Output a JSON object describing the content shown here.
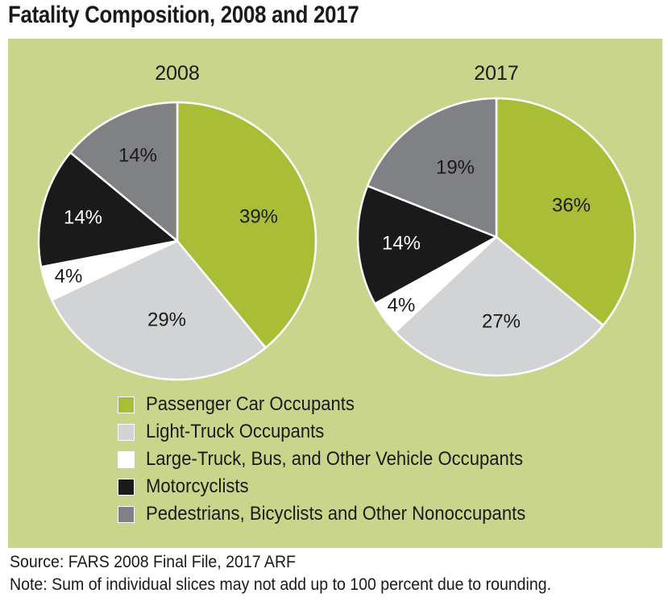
{
  "figure": {
    "title": "Fatality Composition, 2008 and 2017"
  },
  "colors": {
    "panel": "#c8d58b",
    "passenger_car": "#a9bd36",
    "light_truck": "#d1d3d4",
    "large_truck": "#ffffff",
    "motorcyclists": "#1b1a1b",
    "pedestrians": "#808184"
  },
  "legend": [
    {
      "label": "Passenger Car Occupants",
      "color": "#a9bd36"
    },
    {
      "label": "Light-Truck Occupants",
      "color": "#d1d3d4"
    },
    {
      "label": "Large-Truck, Bus, and Other Vehicle Occupants",
      "color": "#ffffff"
    },
    {
      "label": "Motorcyclists",
      "color": "#1b1a1b"
    },
    {
      "label": "Pedestrians, Bicyclists and Other Nonoccupants",
      "color": "#808184"
    }
  ],
  "chart_data": [
    {
      "type": "pie",
      "title": "2008",
      "categories": [
        "Passenger Car Occupants",
        "Light-Truck Occupants",
        "Large-Truck, Bus, and Other Vehicle Occupants",
        "Motorcyclists",
        "Pedestrians, Bicyclists and Other Nonoccupants"
      ],
      "values": [
        39,
        29,
        4,
        14,
        14
      ],
      "labels": [
        "39%",
        "29%",
        "4%",
        "14%",
        "14%"
      ],
      "colors": [
        "#a9bd36",
        "#d1d3d4",
        "#ffffff",
        "#1b1a1b",
        "#808184"
      ]
    },
    {
      "type": "pie",
      "title": "2017",
      "categories": [
        "Passenger Car Occupants",
        "Light-Truck Occupants",
        "Large-Truck, Bus, and Other Vehicle Occupants",
        "Motorcyclists",
        "Pedestrians, Bicyclists and Other Nonoccupants"
      ],
      "values": [
        36,
        27,
        4,
        14,
        19
      ],
      "labels": [
        "36%",
        "27%",
        "4%",
        "14%",
        "19%"
      ],
      "colors": [
        "#a9bd36",
        "#d1d3d4",
        "#ffffff",
        "#1b1a1b",
        "#808184"
      ]
    }
  ],
  "footer": {
    "source": "Source: FARS 2008 Final File, 2017 ARF",
    "note": "Note: Sum of individual slices may not add up to 100 percent due to rounding."
  }
}
